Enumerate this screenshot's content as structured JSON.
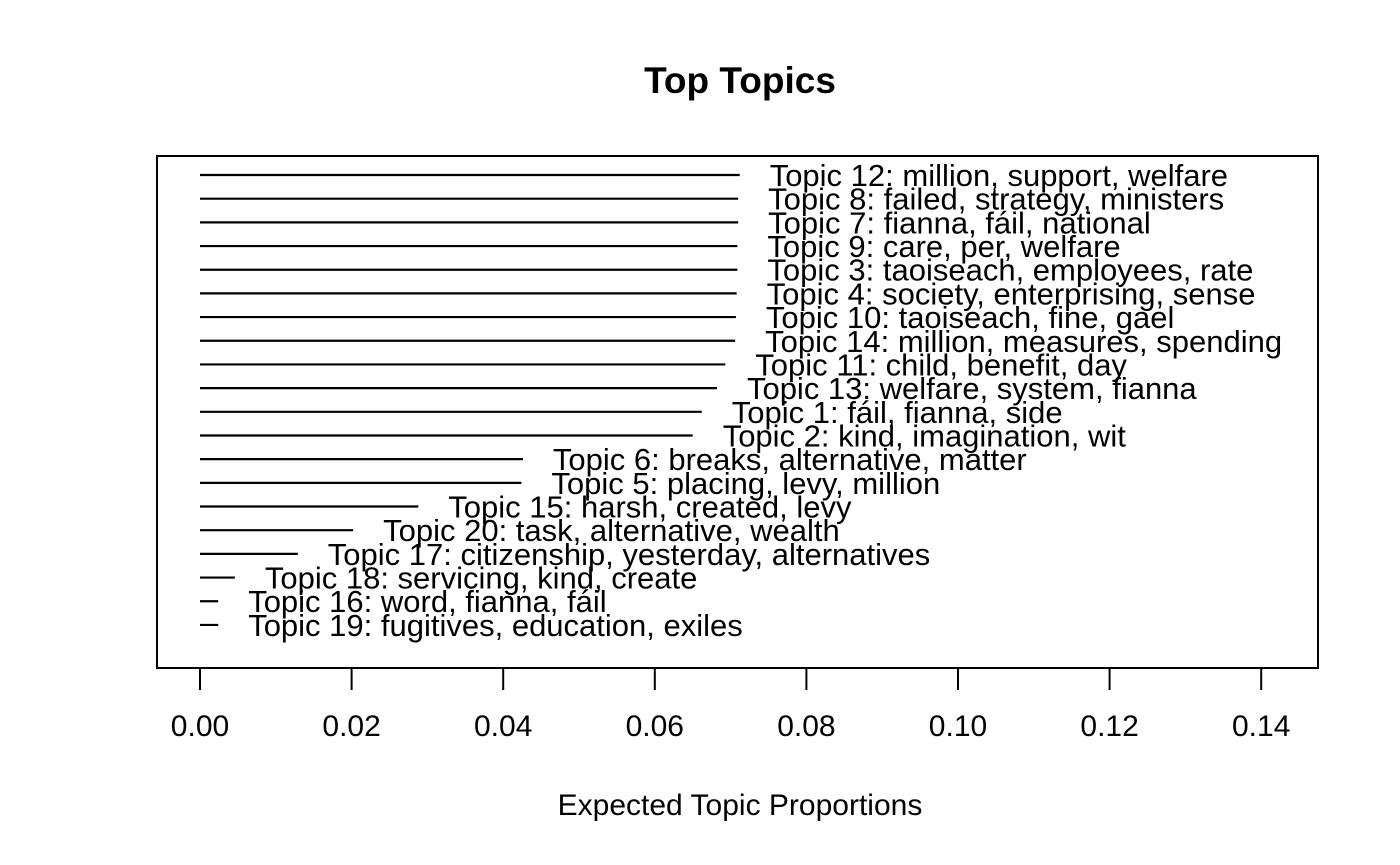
{
  "colors": {
    "background": "#ffffff",
    "line": "#000000",
    "text": "#000000"
  },
  "chart_data": {
    "type": "bar",
    "orientation": "horizontal-line-segments",
    "title": "Top Topics",
    "xlabel": "Expected Topic Proportions",
    "ylabel": "",
    "xlim": [
      -0.0057,
      0.1475
    ],
    "x_ticks": [
      0.0,
      0.02,
      0.04,
      0.06,
      0.08,
      0.1,
      0.12,
      0.14
    ],
    "x_tick_labels": [
      "0.00",
      "0.02",
      "0.04",
      "0.06",
      "0.08",
      "0.10",
      "0.12",
      "0.14"
    ],
    "grid": false,
    "legend": false,
    "categories": [
      "Topic 12: million, support, welfare",
      "Topic 8: failed, strategy, ministers",
      "Topic 7: fianna, fáil, national",
      "Topic 9: care, per, welfare",
      "Topic 3: taoiseach, employees, rate",
      "Topic 4: society, enterprising, sense",
      "Topic 10: taoiseach, fine, gael",
      "Topic 14: million, measures, spending",
      "Topic 11: child, benefit, day",
      "Topic 13: welfare, system, fianna",
      "Topic 1: fáil, fianna, side",
      "Topic 2: kind, imagination, wit",
      "Topic 6: breaks, alternative, matter",
      "Topic 5: placing, levy, million",
      "Topic 15: harsh, created, levy",
      "Topic 20: task, alternative, wealth",
      "Topic 17: citizenship, yesterday, alternatives",
      "Topic 18: servicing, kind, create",
      "Topic 16: word, fianna, fáil",
      "Topic 19: fugitives, education, exiles"
    ],
    "values": [
      0.0712,
      0.071,
      0.071,
      0.0709,
      0.0709,
      0.0708,
      0.0707,
      0.0706,
      0.0693,
      0.0682,
      0.0662,
      0.065,
      0.0426,
      0.0424,
      0.0288,
      0.0202,
      0.0129,
      0.0046,
      0.0024,
      0.0024
    ]
  }
}
